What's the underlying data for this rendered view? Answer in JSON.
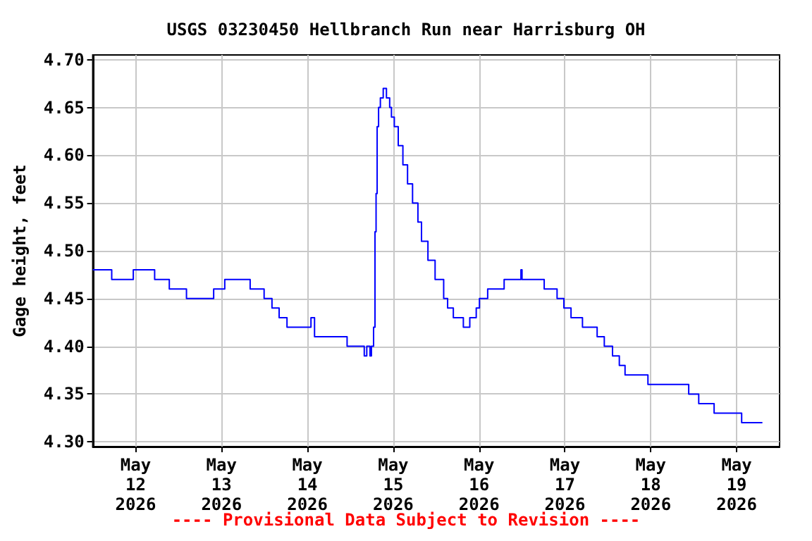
{
  "chart_data": {
    "type": "step",
    "title": "USGS 03230450 Hellbranch Run near Harrisburg OH",
    "ylabel": "Gage height, feet",
    "annotations": [
      "---- Provisional Data Subject to Revision ----"
    ],
    "x": [
      "2026-05-11T12:00",
      "2026-05-11T17:18",
      "2026-05-11T23:20",
      "2026-05-12T05:18",
      "2026-05-12T09:24",
      "2026-05-12T14:12",
      "2026-05-12T21:48",
      "2026-05-13T00:54",
      "2026-05-13T08:00",
      "2026-05-13T11:54",
      "2026-05-13T14:06",
      "2026-05-13T16:06",
      "2026-05-13T18:18",
      "2026-05-14T01:00",
      "2026-05-14T02:00",
      "2026-05-14T11:06",
      "2026-05-14T15:54",
      "2026-05-14T16:36",
      "2026-05-14T17:30",
      "2026-05-14T17:54",
      "2026-05-14T18:30",
      "2026-05-14T18:54",
      "2026-05-14T19:12",
      "2026-05-14T19:30",
      "2026-05-14T19:54",
      "2026-05-14T20:24",
      "2026-05-14T21:12",
      "2026-05-14T22:06",
      "2026-05-14T23:00",
      "2026-05-14T23:30",
      "2026-05-15T00:18",
      "2026-05-15T01:24",
      "2026-05-15T02:42",
      "2026-05-15T04:00",
      "2026-05-15T05:24",
      "2026-05-15T06:54",
      "2026-05-15T07:54",
      "2026-05-15T09:42",
      "2026-05-15T11:42",
      "2026-05-15T14:06",
      "2026-05-15T15:12",
      "2026-05-15T16:48",
      "2026-05-15T19:36",
      "2026-05-15T21:24",
      "2026-05-15T23:12",
      "2026-05-16T00:06",
      "2026-05-16T02:24",
      "2026-05-16T07:00",
      "2026-05-16T11:42",
      "2026-05-16T12:00",
      "2026-05-16T18:12",
      "2026-05-16T21:48",
      "2026-05-16T23:42",
      "2026-05-17T01:42",
      "2026-05-17T04:54",
      "2026-05-17T09:00",
      "2026-05-17T11:00",
      "2026-05-17T13:18",
      "2026-05-17T15:12",
      "2026-05-17T16:48",
      "2026-05-17T23:12",
      "2026-05-18T10:36",
      "2026-05-18T13:24",
      "2026-05-18T17:42",
      "2026-05-19T01:24",
      "2026-05-19T07:12"
    ],
    "series": [
      {
        "color": "#0000ff",
        "values": [
          4.48,
          4.47,
          4.48,
          4.47,
          4.46,
          4.45,
          4.46,
          4.47,
          4.46,
          4.45,
          4.44,
          4.43,
          4.42,
          4.43,
          4.41,
          4.4,
          4.39,
          4.4,
          4.39,
          4.4,
          4.42,
          4.52,
          4.56,
          4.63,
          4.65,
          4.66,
          4.67,
          4.66,
          4.65,
          4.64,
          4.63,
          4.61,
          4.59,
          4.57,
          4.55,
          4.53,
          4.51,
          4.49,
          4.47,
          4.45,
          4.44,
          4.43,
          4.42,
          4.43,
          4.44,
          4.45,
          4.46,
          4.47,
          4.48,
          4.47,
          4.46,
          4.45,
          4.44,
          4.43,
          4.42,
          4.41,
          4.4,
          4.39,
          4.38,
          4.37,
          4.36,
          4.35,
          4.34,
          4.33,
          4.32,
          4.32
        ]
      }
    ],
    "xlim": [
      "2026-05-11T12:00",
      "2026-05-19T12:00"
    ],
    "xticks": [
      {
        "value": "2026-05-12T00:00",
        "label": "May\n12\n2026"
      },
      {
        "value": "2026-05-13T00:00",
        "label": "May\n13\n2026"
      },
      {
        "value": "2026-05-14T00:00",
        "label": "May\n14\n2026"
      },
      {
        "value": "2026-05-15T00:00",
        "label": "May\n15\n2026"
      },
      {
        "value": "2026-05-16T00:00",
        "label": "May\n16\n2026"
      },
      {
        "value": "2026-05-17T00:00",
        "label": "May\n17\n2026"
      },
      {
        "value": "2026-05-18T00:00",
        "label": "May\n18\n2026"
      },
      {
        "value": "2026-05-19T00:00",
        "label": "May\n19\n2026"
      }
    ],
    "ylim": [
      4.295,
      4.705
    ],
    "yticks": [
      {
        "value": 4.3,
        "label": "4.30"
      },
      {
        "value": 4.35,
        "label": "4.35"
      },
      {
        "value": 4.4,
        "label": "4.40"
      },
      {
        "value": 4.45,
        "label": "4.45"
      },
      {
        "value": 4.5,
        "label": "4.50"
      },
      {
        "value": 4.55,
        "label": "4.55"
      },
      {
        "value": 4.6,
        "label": "4.60"
      },
      {
        "value": 4.65,
        "label": "4.65"
      },
      {
        "value": 4.7,
        "label": "4.70"
      }
    ],
    "grid": true,
    "line_style": "solid",
    "marker": "none"
  }
}
